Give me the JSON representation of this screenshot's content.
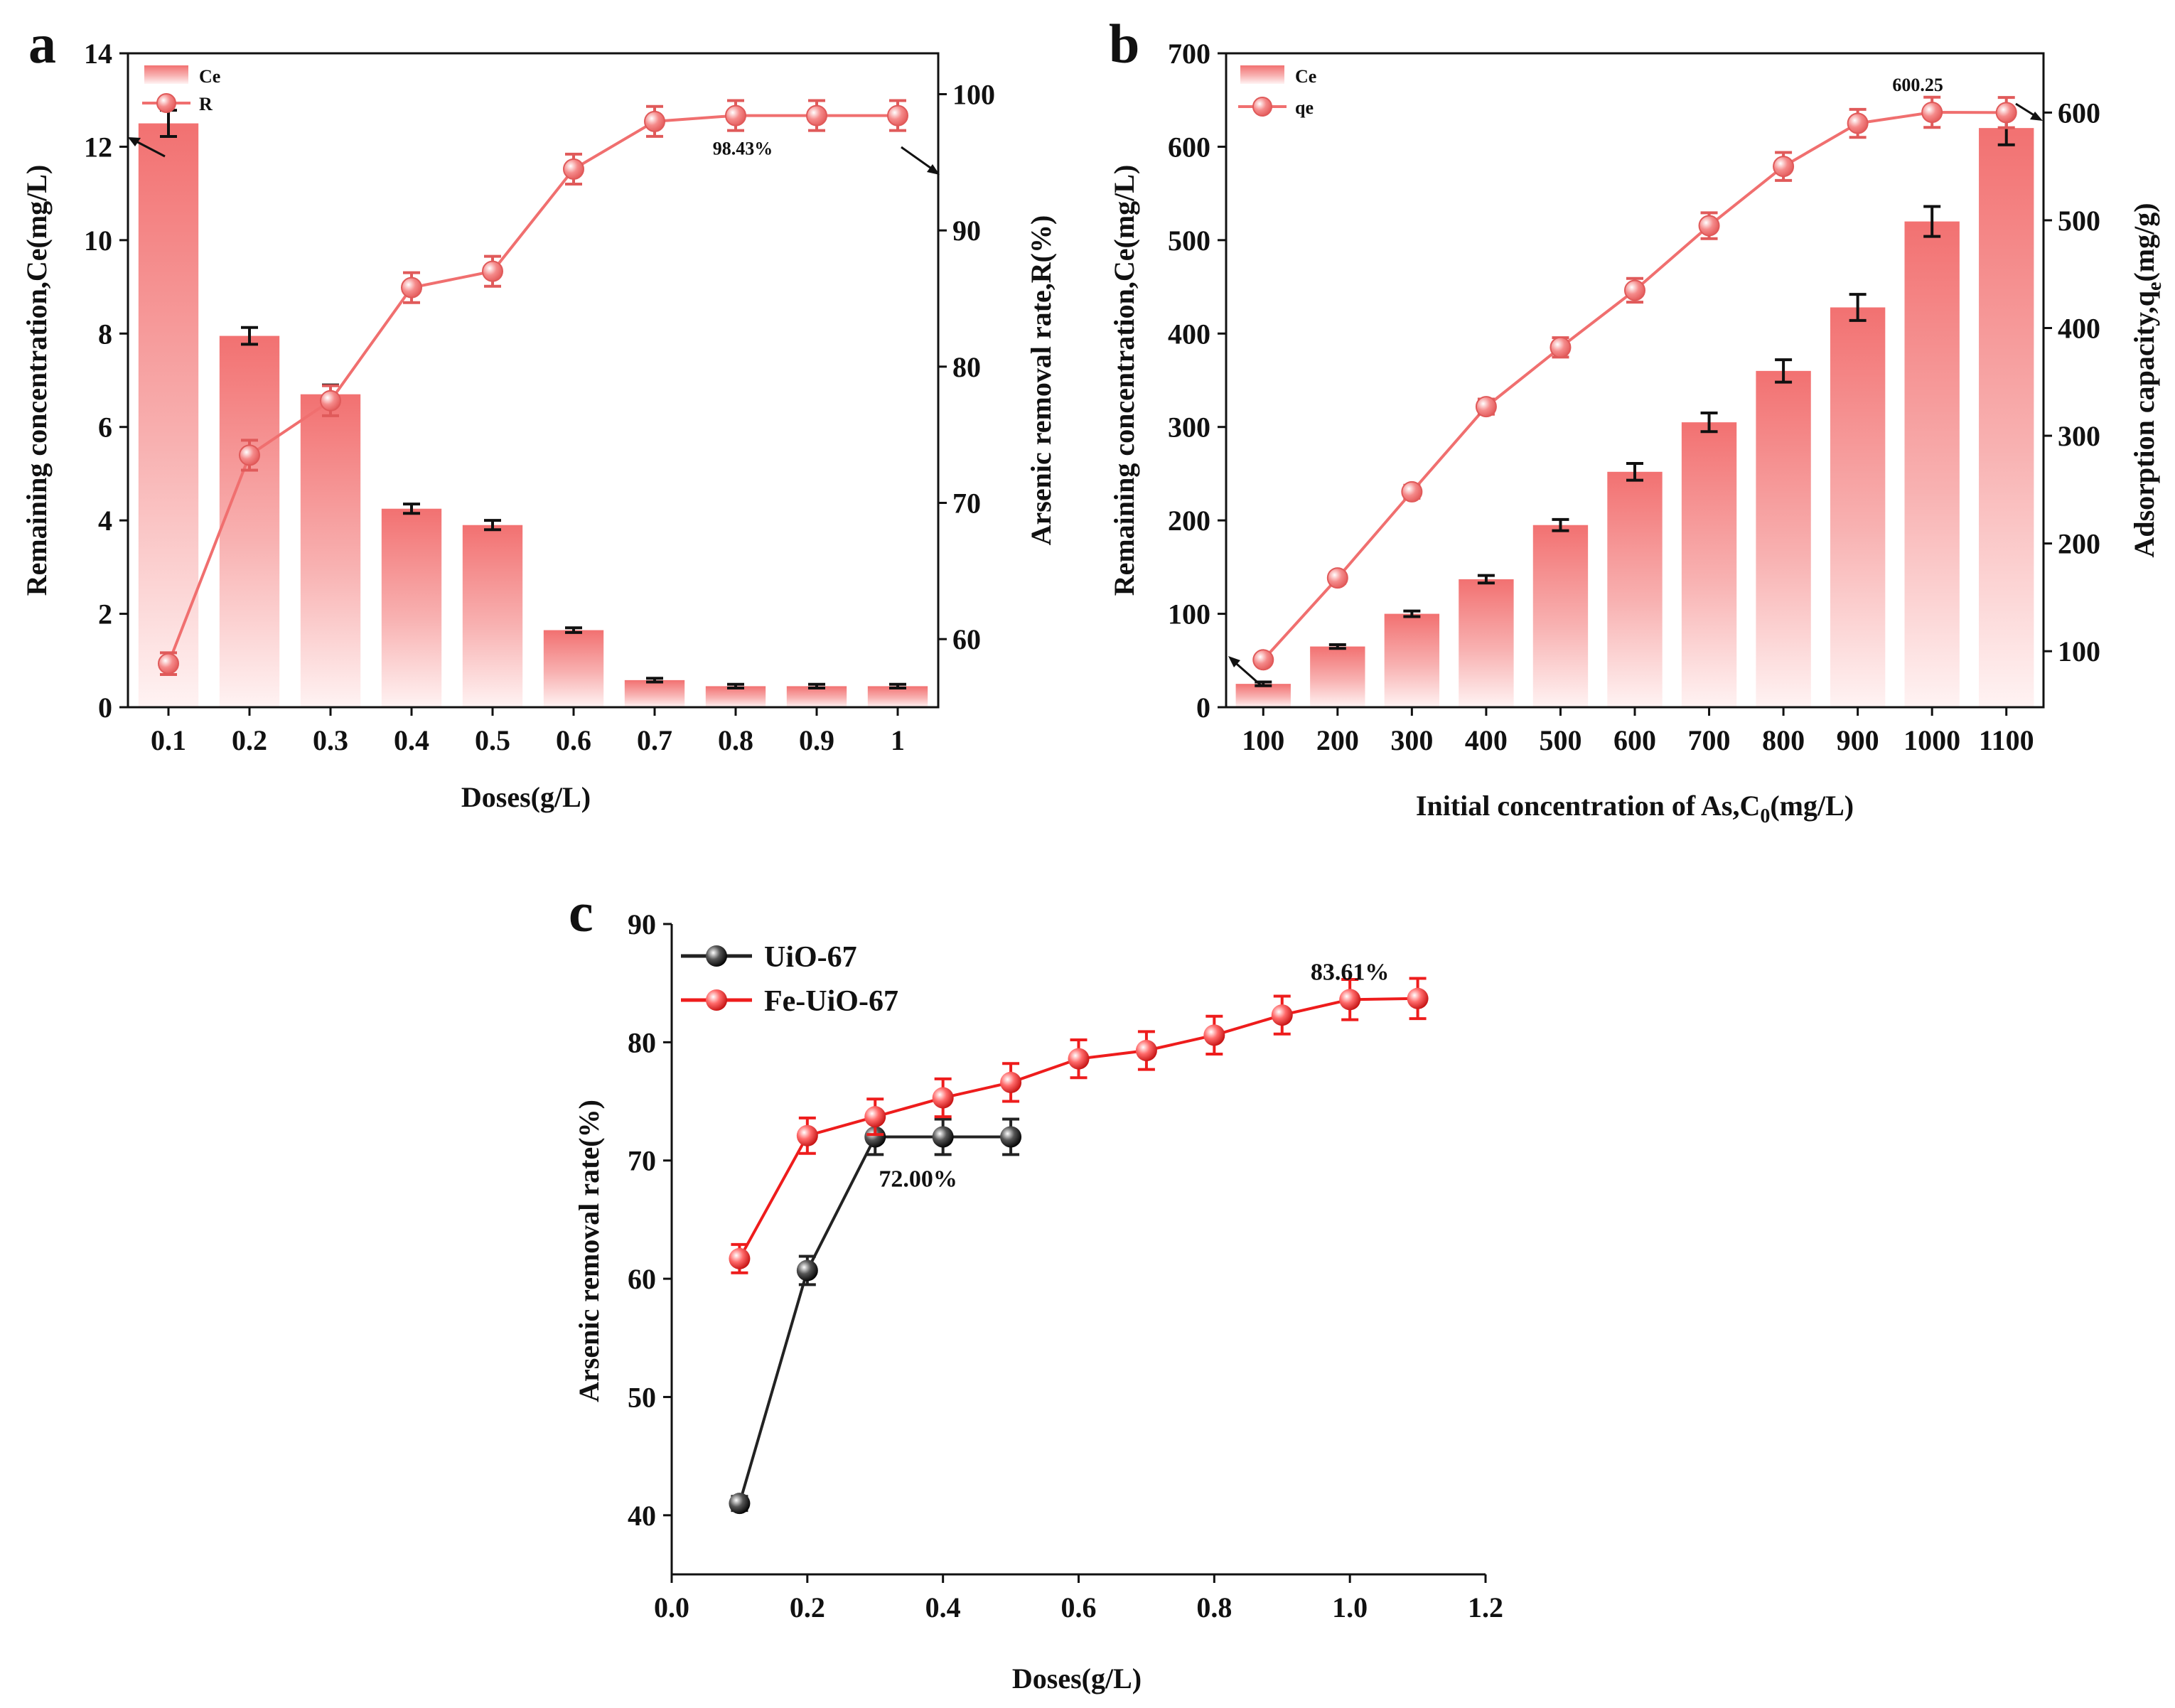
{
  "chart_data": [
    {
      "id": "a",
      "panel_label": "a",
      "type": "bar",
      "categories": [
        "0.1",
        "0.2",
        "0.3",
        "0.4",
        "0.5",
        "0.6",
        "0.7",
        "0.8",
        "0.9",
        "1"
      ],
      "xlabel": "Doses(g/L)",
      "ylabel": "Remaining concentration,Ce(mg/L)",
      "y2label": "Arsenic removal rate,R(%)",
      "ylim": [
        0,
        14
      ],
      "yticks": [
        0,
        2,
        4,
        6,
        8,
        10,
        12,
        14
      ],
      "y2lim": [
        55,
        103
      ],
      "y2ticks": [
        60,
        70,
        80,
        90,
        100
      ],
      "legend_position": "top-left",
      "series": [
        {
          "name": "Ce",
          "kind": "bar",
          "axis": "left",
          "color": "#f06f6f",
          "values": [
            12.5,
            7.95,
            6.7,
            4.25,
            3.9,
            1.65,
            0.58,
            0.45,
            0.45,
            0.45
          ],
          "errors": [
            0.28,
            0.18,
            0.2,
            0.1,
            0.1,
            0.05,
            0.04,
            0.04,
            0.04,
            0.04
          ]
        },
        {
          "name": "R",
          "kind": "line",
          "axis": "right",
          "color": "#f06f6f",
          "values": [
            58.2,
            73.5,
            77.5,
            85.8,
            87.0,
            94.5,
            98.0,
            98.43,
            98.43,
            98.43
          ],
          "errors": [
            0.8,
            1.1,
            1.1,
            1.1,
            1.1,
            1.1,
            1.1,
            1.1,
            1.1,
            1.1
          ]
        }
      ],
      "annotations": [
        {
          "text": "98.43%",
          "series": 1,
          "index": 7
        }
      ]
    },
    {
      "id": "b",
      "panel_label": "b",
      "type": "bar",
      "categories": [
        "100",
        "200",
        "300",
        "400",
        "500",
        "600",
        "700",
        "800",
        "900",
        "1000",
        "1100"
      ],
      "xlabel": "Initial concentration of As,C",
      "xlabel_sub": "0",
      "xlabel_tail": "(mg/L)",
      "ylabel": "Remaining concentration,Ce(mg/L)",
      "y2label": "Adsorption capacity,q",
      "y2label_sub": "e",
      "y2label_tail": "(mg/g)",
      "ylim": [
        0,
        700
      ],
      "yticks": [
        0,
        100,
        200,
        300,
        400,
        500,
        600,
        700
      ],
      "y2lim": [
        48,
        655
      ],
      "y2ticks": [
        100,
        200,
        300,
        400,
        500,
        600
      ],
      "legend_position": "top-left",
      "series": [
        {
          "name": "Ce",
          "kind": "bar",
          "axis": "left",
          "color": "#f06f6f",
          "values": [
            25,
            65,
            100,
            137,
            195,
            252,
            305,
            360,
            428,
            520,
            620
          ],
          "errors": [
            2,
            2,
            3,
            4,
            6,
            9,
            10,
            12,
            14,
            16,
            18
          ]
        },
        {
          "name": "qe",
          "kind": "line",
          "axis": "right",
          "color": "#f06f6f",
          "values": [
            92,
            168,
            248,
            327,
            382,
            435,
            495,
            550,
            590,
            600.25,
            600
          ],
          "errors": [
            4,
            5,
            6,
            7,
            9,
            11,
            12,
            13,
            13,
            14,
            14
          ]
        }
      ],
      "annotations": [
        {
          "text": "600.25",
          "series": 1,
          "index": 9
        }
      ]
    },
    {
      "id": "c",
      "panel_label": "c",
      "type": "line",
      "xlabel": "Doses(g/L)",
      "ylabel": "Arsenic removal rate(%)",
      "xlim": [
        0,
        1.2
      ],
      "xticks": [
        "0.0",
        "0.2",
        "0.4",
        "0.6",
        "0.8",
        "1.0",
        "1.2"
      ],
      "ylim": [
        35,
        90
      ],
      "yticks": [
        40,
        50,
        60,
        70,
        80,
        90
      ],
      "legend_position": "top-left",
      "series": [
        {
          "name": "UiO-67",
          "color": "#222222",
          "x": [
            0.1,
            0.2,
            0.3,
            0.4,
            0.5
          ],
          "y": [
            41.0,
            60.7,
            72.0,
            72.0,
            72.0
          ],
          "errors": [
            0.6,
            1.2,
            1.5,
            1.5,
            1.5
          ]
        },
        {
          "name": "Fe-UiO-67",
          "color": "#ee1c1c",
          "x": [
            0.1,
            0.2,
            0.3,
            0.4,
            0.5,
            0.6,
            0.7,
            0.8,
            0.9,
            1.0,
            1.1
          ],
          "y": [
            61.7,
            72.1,
            73.7,
            75.3,
            76.6,
            78.6,
            79.3,
            80.6,
            82.3,
            83.61,
            83.7
          ],
          "errors": [
            1.2,
            1.5,
            1.5,
            1.6,
            1.6,
            1.6,
            1.6,
            1.6,
            1.6,
            1.7,
            1.7
          ]
        }
      ],
      "annotations": [
        {
          "text": "72.00%",
          "series": 0,
          "index": 3
        },
        {
          "text": "83.61%",
          "series": 1,
          "index": 9
        }
      ]
    }
  ]
}
